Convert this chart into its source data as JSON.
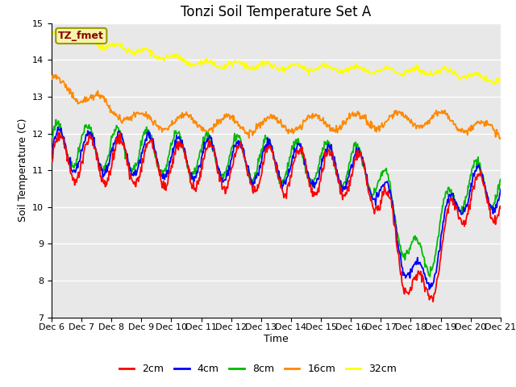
{
  "title": "Tonzi Soil Temperature Set A",
  "xlabel": "Time",
  "ylabel": "Soil Temperature (C)",
  "ylim": [
    7.0,
    15.0
  ],
  "yticks": [
    7.0,
    8.0,
    9.0,
    10.0,
    11.0,
    12.0,
    13.0,
    14.0,
    15.0
  ],
  "xtick_labels": [
    "Dec 6",
    "Dec 7",
    "Dec 8",
    "Dec 9",
    "Dec 10",
    "Dec 11",
    "Dec 12",
    "Dec 13",
    "Dec 14",
    "Dec 15",
    "Dec 16",
    "Dec 17",
    "Dec 18",
    "Dec 19",
    "Dec 20",
    "Dec 21"
  ],
  "legend_label": "TZ_fmet",
  "series_labels": [
    "2cm",
    "4cm",
    "8cm",
    "16cm",
    "32cm"
  ],
  "series_colors": [
    "#ff0000",
    "#0000ff",
    "#00bb00",
    "#ff8800",
    "#ffff00"
  ],
  "bg_color": "#e8e8e8",
  "fig_color": "#ffffff",
  "title_fontsize": 12,
  "axis_fontsize": 9,
  "tick_fontsize": 8
}
